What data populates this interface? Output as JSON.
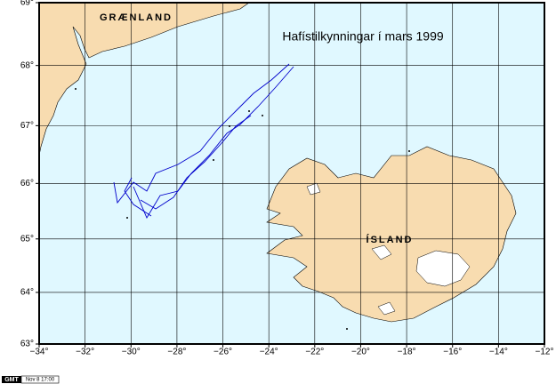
{
  "title": "Hafístilkynningar í mars 1999",
  "labels": {
    "greenland": "GRÆNLAND",
    "iceland": "ÍSLAND"
  },
  "logo": {
    "name": "GMT",
    "stamp": "Nov 8 17:00"
  },
  "map": {
    "projection": "mercator",
    "xlim": [
      -34,
      -12
    ],
    "ylim": [
      63,
      69
    ],
    "grid": true,
    "xticks": [
      {
        "value": -34,
        "label": "−34°"
      },
      {
        "value": -32,
        "label": "−32°"
      },
      {
        "value": -30,
        "label": "−30°"
      },
      {
        "value": -28,
        "label": "−28°"
      },
      {
        "value": -26,
        "label": "−26°"
      },
      {
        "value": -24,
        "label": "−24°"
      },
      {
        "value": -22,
        "label": "−22°"
      },
      {
        "value": -20,
        "label": "−20°"
      },
      {
        "value": -18,
        "label": "−18°"
      },
      {
        "value": -16,
        "label": "−16°"
      },
      {
        "value": -14,
        "label": "−14°"
      },
      {
        "value": -12,
        "label": "−12°"
      }
    ],
    "yticks": [
      {
        "value": 63,
        "label": "63°"
      },
      {
        "value": 64,
        "label": "64°"
      },
      {
        "value": 65,
        "label": "65°"
      },
      {
        "value": 66,
        "label": "66°"
      },
      {
        "value": 67,
        "label": "67°"
      },
      {
        "value": 68,
        "label": "68°"
      },
      {
        "value": 69,
        "label": "69°"
      }
    ]
  }
}
